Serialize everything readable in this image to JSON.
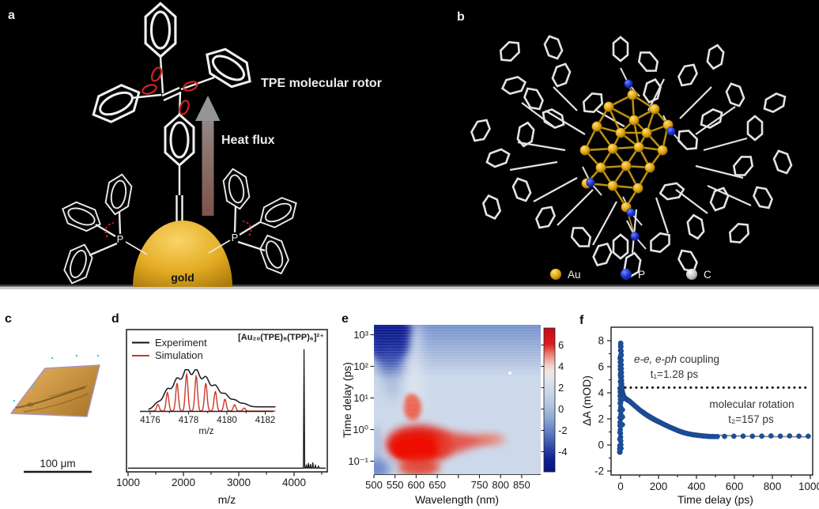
{
  "figure": {
    "a": {
      "label": "a",
      "rotor": "TPE molecular rotor",
      "heat": "Heat flux",
      "gold": "gold",
      "p_left": "P",
      "p_right": "P"
    },
    "b": {
      "label": "b",
      "legend": [
        {
          "label": "Au",
          "color": "#f0a500"
        },
        {
          "label": "P",
          "color": "#1c34cc"
        },
        {
          "label": "C",
          "color": "#cccccc"
        }
      ]
    },
    "c": {
      "label": "c",
      "scalebar": "100 μm"
    },
    "d": {
      "label": "d",
      "formula": "[Au₂₀(TPE)₈(TPP)₆]²⁺",
      "legend_experiment": "Experiment",
      "legend_simulation": "Simulation",
      "xlabel": "m/z",
      "xticks": [
        "1000",
        "2000",
        "3000",
        "4000"
      ],
      "inset_xlabel": "m/z",
      "inset_xticks": [
        "4176",
        "4178",
        "4180",
        "4182"
      ]
    },
    "e": {
      "label": "e",
      "xlabel": "Wavelength (nm)",
      "ylabel": "Time delay (ps)",
      "xticks": [
        "500",
        "550",
        "600",
        "650",
        "",
        "750",
        "800",
        "850"
      ],
      "yticks": [
        "10³",
        "10²",
        "10¹",
        "10⁰",
        "10⁻¹"
      ],
      "cbticks": [
        "6",
        "4",
        "2",
        "0",
        "-2",
        "-4"
      ]
    },
    "f": {
      "label": "f",
      "xlabel": "Time delay (ps)",
      "ylabel": "ΔA (mOD)",
      "xticks": [
        "0",
        "200",
        "400",
        "600",
        "800",
        "1000"
      ],
      "yticks": [
        "8",
        "6",
        "4",
        "2",
        "0",
        "-2"
      ],
      "ann1_italic": "e-e, e-ph",
      "ann1_rest": " coupling",
      "ann1_tau": "t₁=1.28 ps",
      "ann2": "molecular rotation",
      "ann2_tau": "t₂=157 ps"
    }
  },
  "chart_data": [
    {
      "id": "mass_spectrum",
      "type": "line",
      "xlabel": "m/z",
      "x_range": [
        1000,
        4800
      ],
      "peak_label": "[Au₂₀(TPE)₈(TPP)₆]²⁺",
      "main_peaks": [
        {
          "mz": 4180,
          "rel_intensity": 1.0
        },
        {
          "mz": 4222,
          "rel_intensity": 0.028
        },
        {
          "mz": 4258,
          "rel_intensity": 0.04
        },
        {
          "mz": 4296,
          "rel_intensity": 0.032
        },
        {
          "mz": 4338,
          "rel_intensity": 0.045
        },
        {
          "mz": 4385,
          "rel_intensity": 0.027
        },
        {
          "mz": 4440,
          "rel_intensity": 0.018
        }
      ],
      "inset": {
        "xlabel": "m/z",
        "x_range": [
          4176,
          4182
        ],
        "isotope_spacing_mz": 0.5,
        "series": [
          {
            "name": "Experiment",
            "color": "#1a1a1a"
          },
          {
            "name": "Simulation",
            "color": "#c8382a"
          }
        ],
        "isotope_centers": [
          4176.4,
          4176.9,
          4177.4,
          4177.9,
          4178.4,
          4178.9,
          4179.4,
          4179.9,
          4180.4,
          4180.9
        ],
        "isotope_rel_heights": [
          0.18,
          0.5,
          0.75,
          1.0,
          0.95,
          0.75,
          0.53,
          0.32,
          0.17,
          0.08
        ]
      }
    },
    {
      "id": "ta_heatmap",
      "type": "heatmap",
      "xlabel": "Wavelength (nm)",
      "ylabel": "Time delay (ps)",
      "x_range_nm": [
        500,
        880
      ],
      "y_range_ps": [
        0.04,
        2000
      ],
      "y_scale": "log",
      "colorbar": {
        "ticks": [
          6,
          4,
          2,
          0,
          -2,
          -4
        ],
        "range": [
          -5,
          7
        ]
      },
      "features": [
        {
          "name": "excited-state absorption",
          "sign": "positive",
          "wavelength_nm": [
            530,
            780
          ],
          "time_ps": [
            0.05,
            12
          ],
          "peak_value": 7
        },
        {
          "name": "ground-state bleach",
          "sign": "negative",
          "wavelength_nm": [
            500,
            580
          ],
          "time_ps": [
            60,
            2000
          ],
          "peak_value": -5
        },
        {
          "name": "broad weak negative band",
          "sign": "negative",
          "wavelength_nm": [
            600,
            880
          ],
          "time_ps": [
            200,
            2000
          ],
          "peak_value": -2
        }
      ]
    },
    {
      "id": "kinetics",
      "type": "scatter",
      "xlabel": "Time delay (ps)",
      "ylabel": "ΔA (mOD)",
      "x_range": [
        -20,
        1020
      ],
      "y_range": [
        -2,
        9
      ],
      "dotted_level_mOD": 4.4,
      "fit": {
        "A1": 4.2,
        "t1_ps": 1.28,
        "A2": 3.55,
        "t2_ps": 157,
        "offset": 0.62,
        "max": 7.8
      },
      "spike": {
        "t_ps": 0,
        "min": -0.55,
        "max": 7.8,
        "n": 30,
        "x_jitter_ps": 6
      },
      "points": [
        [
          -5,
          -0.55
        ],
        [
          -4.5,
          -0.3
        ],
        [
          -4,
          -0.05
        ],
        [
          -4,
          0.45
        ],
        [
          -3.5,
          0.95
        ],
        [
          -3,
          1.5
        ],
        [
          -3,
          2.1
        ],
        [
          -2.5,
          2.65
        ],
        [
          -2,
          3.2
        ],
        [
          -2,
          3.75
        ],
        [
          -1.5,
          4.3
        ],
        [
          -1,
          4.85
        ],
        [
          -1,
          5.35
        ],
        [
          -0.5,
          5.85
        ],
        [
          0,
          6.35
        ],
        [
          0,
          6.8
        ],
        [
          0,
          7.25
        ],
        [
          0.5,
          7.6
        ],
        [
          1,
          7.8
        ],
        [
          1.5,
          7.55
        ],
        [
          2,
          7.2
        ],
        [
          2.5,
          6.85
        ],
        [
          3,
          6.5
        ],
        [
          3.5,
          6.15
        ],
        [
          4,
          5.85
        ],
        [
          4.5,
          5.55
        ],
        [
          5,
          5.25
        ],
        [
          5.5,
          4.95
        ],
        [
          6,
          4.7
        ],
        [
          6.5,
          4.5
        ],
        [
          7,
          4.35
        ],
        [
          8,
          4.2
        ],
        [
          9,
          4.1
        ],
        [
          10,
          4.0
        ],
        [
          11,
          3.95
        ],
        [
          12,
          3.9
        ],
        [
          13,
          3.85
        ],
        [
          14,
          3.8
        ],
        [
          16,
          3.75
        ],
        [
          18,
          3.7
        ],
        [
          20,
          3.65
        ],
        [
          24,
          3.6
        ],
        [
          28,
          3.55
        ],
        [
          32,
          3.5
        ],
        [
          36,
          3.46
        ],
        [
          40,
          3.42
        ],
        [
          45,
          3.38
        ],
        [
          50,
          3.33
        ],
        [
          56,
          3.25
        ],
        [
          62,
          3.17
        ],
        [
          68,
          3.1
        ],
        [
          75,
          3.0
        ],
        [
          82,
          2.92
        ],
        [
          90,
          2.82
        ],
        [
          98,
          2.72
        ],
        [
          106,
          2.63
        ],
        [
          114,
          2.55
        ],
        [
          122,
          2.47
        ],
        [
          130,
          2.39
        ],
        [
          138,
          2.31
        ],
        [
          146,
          2.24
        ],
        [
          154,
          2.17
        ],
        [
          162,
          2.1
        ],
        [
          170,
          2.03
        ],
        [
          178,
          1.97
        ],
        [
          186,
          1.9
        ],
        [
          194,
          1.84
        ],
        [
          202,
          1.78
        ],
        [
          210,
          1.72
        ],
        [
          218,
          1.66
        ],
        [
          226,
          1.6
        ],
        [
          234,
          1.54
        ],
        [
          242,
          1.49
        ],
        [
          250,
          1.43
        ],
        [
          258,
          1.38
        ],
        [
          266,
          1.33
        ],
        [
          274,
          1.28
        ],
        [
          282,
          1.23
        ],
        [
          290,
          1.18
        ],
        [
          298,
          1.13
        ],
        [
          306,
          1.08
        ],
        [
          314,
          1.04
        ],
        [
          322,
          1.0
        ],
        [
          330,
          0.96
        ],
        [
          340,
          0.92
        ],
        [
          350,
          0.88
        ],
        [
          360,
          0.85
        ],
        [
          370,
          0.82
        ],
        [
          380,
          0.79
        ],
        [
          390,
          0.77
        ],
        [
          400,
          0.75
        ],
        [
          412,
          0.73
        ],
        [
          424,
          0.71
        ],
        [
          436,
          0.69
        ],
        [
          448,
          0.68
        ],
        [
          460,
          0.66
        ],
        [
          472,
          0.65
        ],
        [
          484,
          0.65
        ],
        [
          496,
          0.64
        ],
        [
          510,
          0.64
        ],
        [
          548,
          0.66
        ],
        [
          597,
          0.67
        ],
        [
          646,
          0.68
        ],
        [
          695,
          0.67
        ],
        [
          744,
          0.68
        ],
        [
          793,
          0.7
        ],
        [
          842,
          0.68
        ],
        [
          891,
          0.7
        ],
        [
          940,
          0.68
        ],
        [
          989,
          0.67
        ],
        [
          9,
          3.5
        ],
        [
          10,
          2.7
        ],
        [
          10,
          2.15
        ],
        [
          10,
          1.55
        ]
      ]
    }
  ]
}
